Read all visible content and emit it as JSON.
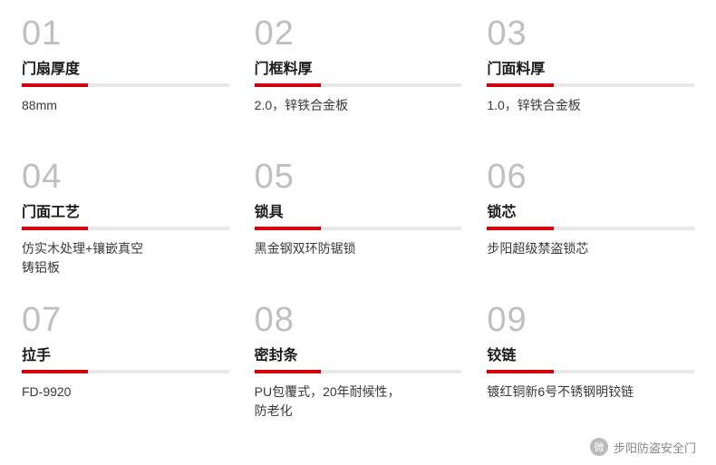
{
  "accent_color": "#d4000f",
  "bar_bg": "#e8e8e8",
  "num_color": "#bfbfbf",
  "items": [
    {
      "num": "01",
      "title": "门扇厚度",
      "desc": "88mm"
    },
    {
      "num": "02",
      "title": "门框料厚",
      "desc": "2.0，锌铁合金板"
    },
    {
      "num": "03",
      "title": "门面料厚",
      "desc": "1.0，锌铁合金板"
    },
    {
      "num": "04",
      "title": "门面工艺",
      "desc": "仿实木处理+镶嵌真空\n铸铝板"
    },
    {
      "num": "05",
      "title": "锁具",
      "desc": "黑金钢双环防锯锁"
    },
    {
      "num": "06",
      "title": "锁芯",
      "desc": "步阳超级禁盗锁芯"
    },
    {
      "num": "07",
      "title": "拉手",
      "desc": "FD-9920"
    },
    {
      "num": "08",
      "title": "密封条",
      "desc": "PU包覆式，20年耐候性，\n防老化"
    },
    {
      "num": "09",
      "title": "铰链",
      "desc": "镀红铜新6号不锈钢明铰链"
    }
  ],
  "footer": {
    "icon_label": "微",
    "text": "步阳防盗安全门"
  }
}
